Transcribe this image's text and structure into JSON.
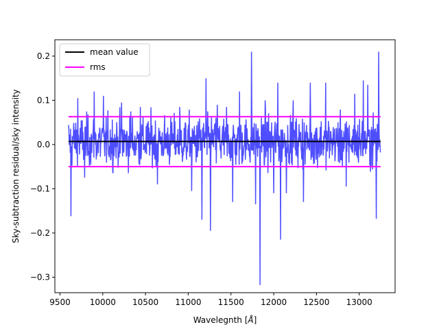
{
  "chart_data": {
    "type": "line",
    "title": "",
    "xlabel": "Wavelegnth [",
    "xlabel_unit": "Å",
    "xlabel_end": "]",
    "ylabel": "Sky-subtraction residual/sky intensity",
    "xlim": [
      9440,
      13420
    ],
    "ylim": [
      -0.335,
      0.237
    ],
    "xticks": [
      9500,
      10000,
      10500,
      11000,
      11500,
      12000,
      12500,
      13000
    ],
    "xtick_labels": [
      "9500",
      "10000",
      "10500",
      "11000",
      "11500",
      "12000",
      "12500",
      "13000"
    ],
    "yticks": [
      -0.3,
      -0.2,
      -0.1,
      0.0,
      0.1,
      0.2
    ],
    "ytick_labels": [
      "−0.3",
      "−0.2",
      "−0.1",
      "0.0",
      "0.1",
      "0.2"
    ],
    "grid": false,
    "legend_position": "upper-left",
    "series": [
      {
        "name": "",
        "color": "#4444ff",
        "x_range": [
          9600,
          13250
        ],
        "noise_sigma": 0.028,
        "spikes": [
          [
            9630,
            -0.162
          ],
          [
            9710,
            0.105
          ],
          [
            9790,
            -0.075
          ],
          [
            9900,
            0.12
          ],
          [
            10010,
            0.11
          ],
          [
            10120,
            -0.065
          ],
          [
            10220,
            0.095
          ],
          [
            10330,
            0.075
          ],
          [
            10440,
            0.085
          ],
          [
            10640,
            -0.09
          ],
          [
            10900,
            0.085
          ],
          [
            11040,
            -0.105
          ],
          [
            11160,
            -0.17
          ],
          [
            11210,
            0.15
          ],
          [
            11260,
            -0.195
          ],
          [
            11340,
            0.09
          ],
          [
            11450,
            0.085
          ],
          [
            11520,
            -0.13
          ],
          [
            11600,
            0.12
          ],
          [
            11740,
            0.21
          ],
          [
            11790,
            -0.135
          ],
          [
            11840,
            -0.318
          ],
          [
            11900,
            0.1
          ],
          [
            12000,
            -0.11
          ],
          [
            12050,
            0.14
          ],
          [
            12080,
            -0.215
          ],
          [
            12150,
            -0.11
          ],
          [
            12230,
            0.1
          ],
          [
            12350,
            -0.13
          ],
          [
            12430,
            0.14
          ],
          [
            12610,
            0.14
          ],
          [
            12850,
            -0.095
          ],
          [
            12950,
            0.115
          ],
          [
            13050,
            0.145
          ],
          [
            13100,
            0.135
          ],
          [
            13200,
            -0.168
          ],
          [
            13230,
            0.21
          ]
        ]
      },
      {
        "name": "mean value",
        "color": "#000000",
        "x": [
          9600,
          13250
        ],
        "y": [
          0.007,
          0.007
        ]
      },
      {
        "name": "rms",
        "color": "#ff00ff",
        "x": [
          9600,
          13250
        ],
        "y": [
          0.063,
          0.063
        ]
      },
      {
        "name": "",
        "color": "#ff00ff",
        "x": [
          9600,
          13250
        ],
        "y": [
          -0.05,
          -0.05
        ]
      }
    ],
    "legend": [
      {
        "label": "mean value",
        "color": "#000000"
      },
      {
        "label": "rms",
        "color": "#ff00ff"
      }
    ]
  }
}
